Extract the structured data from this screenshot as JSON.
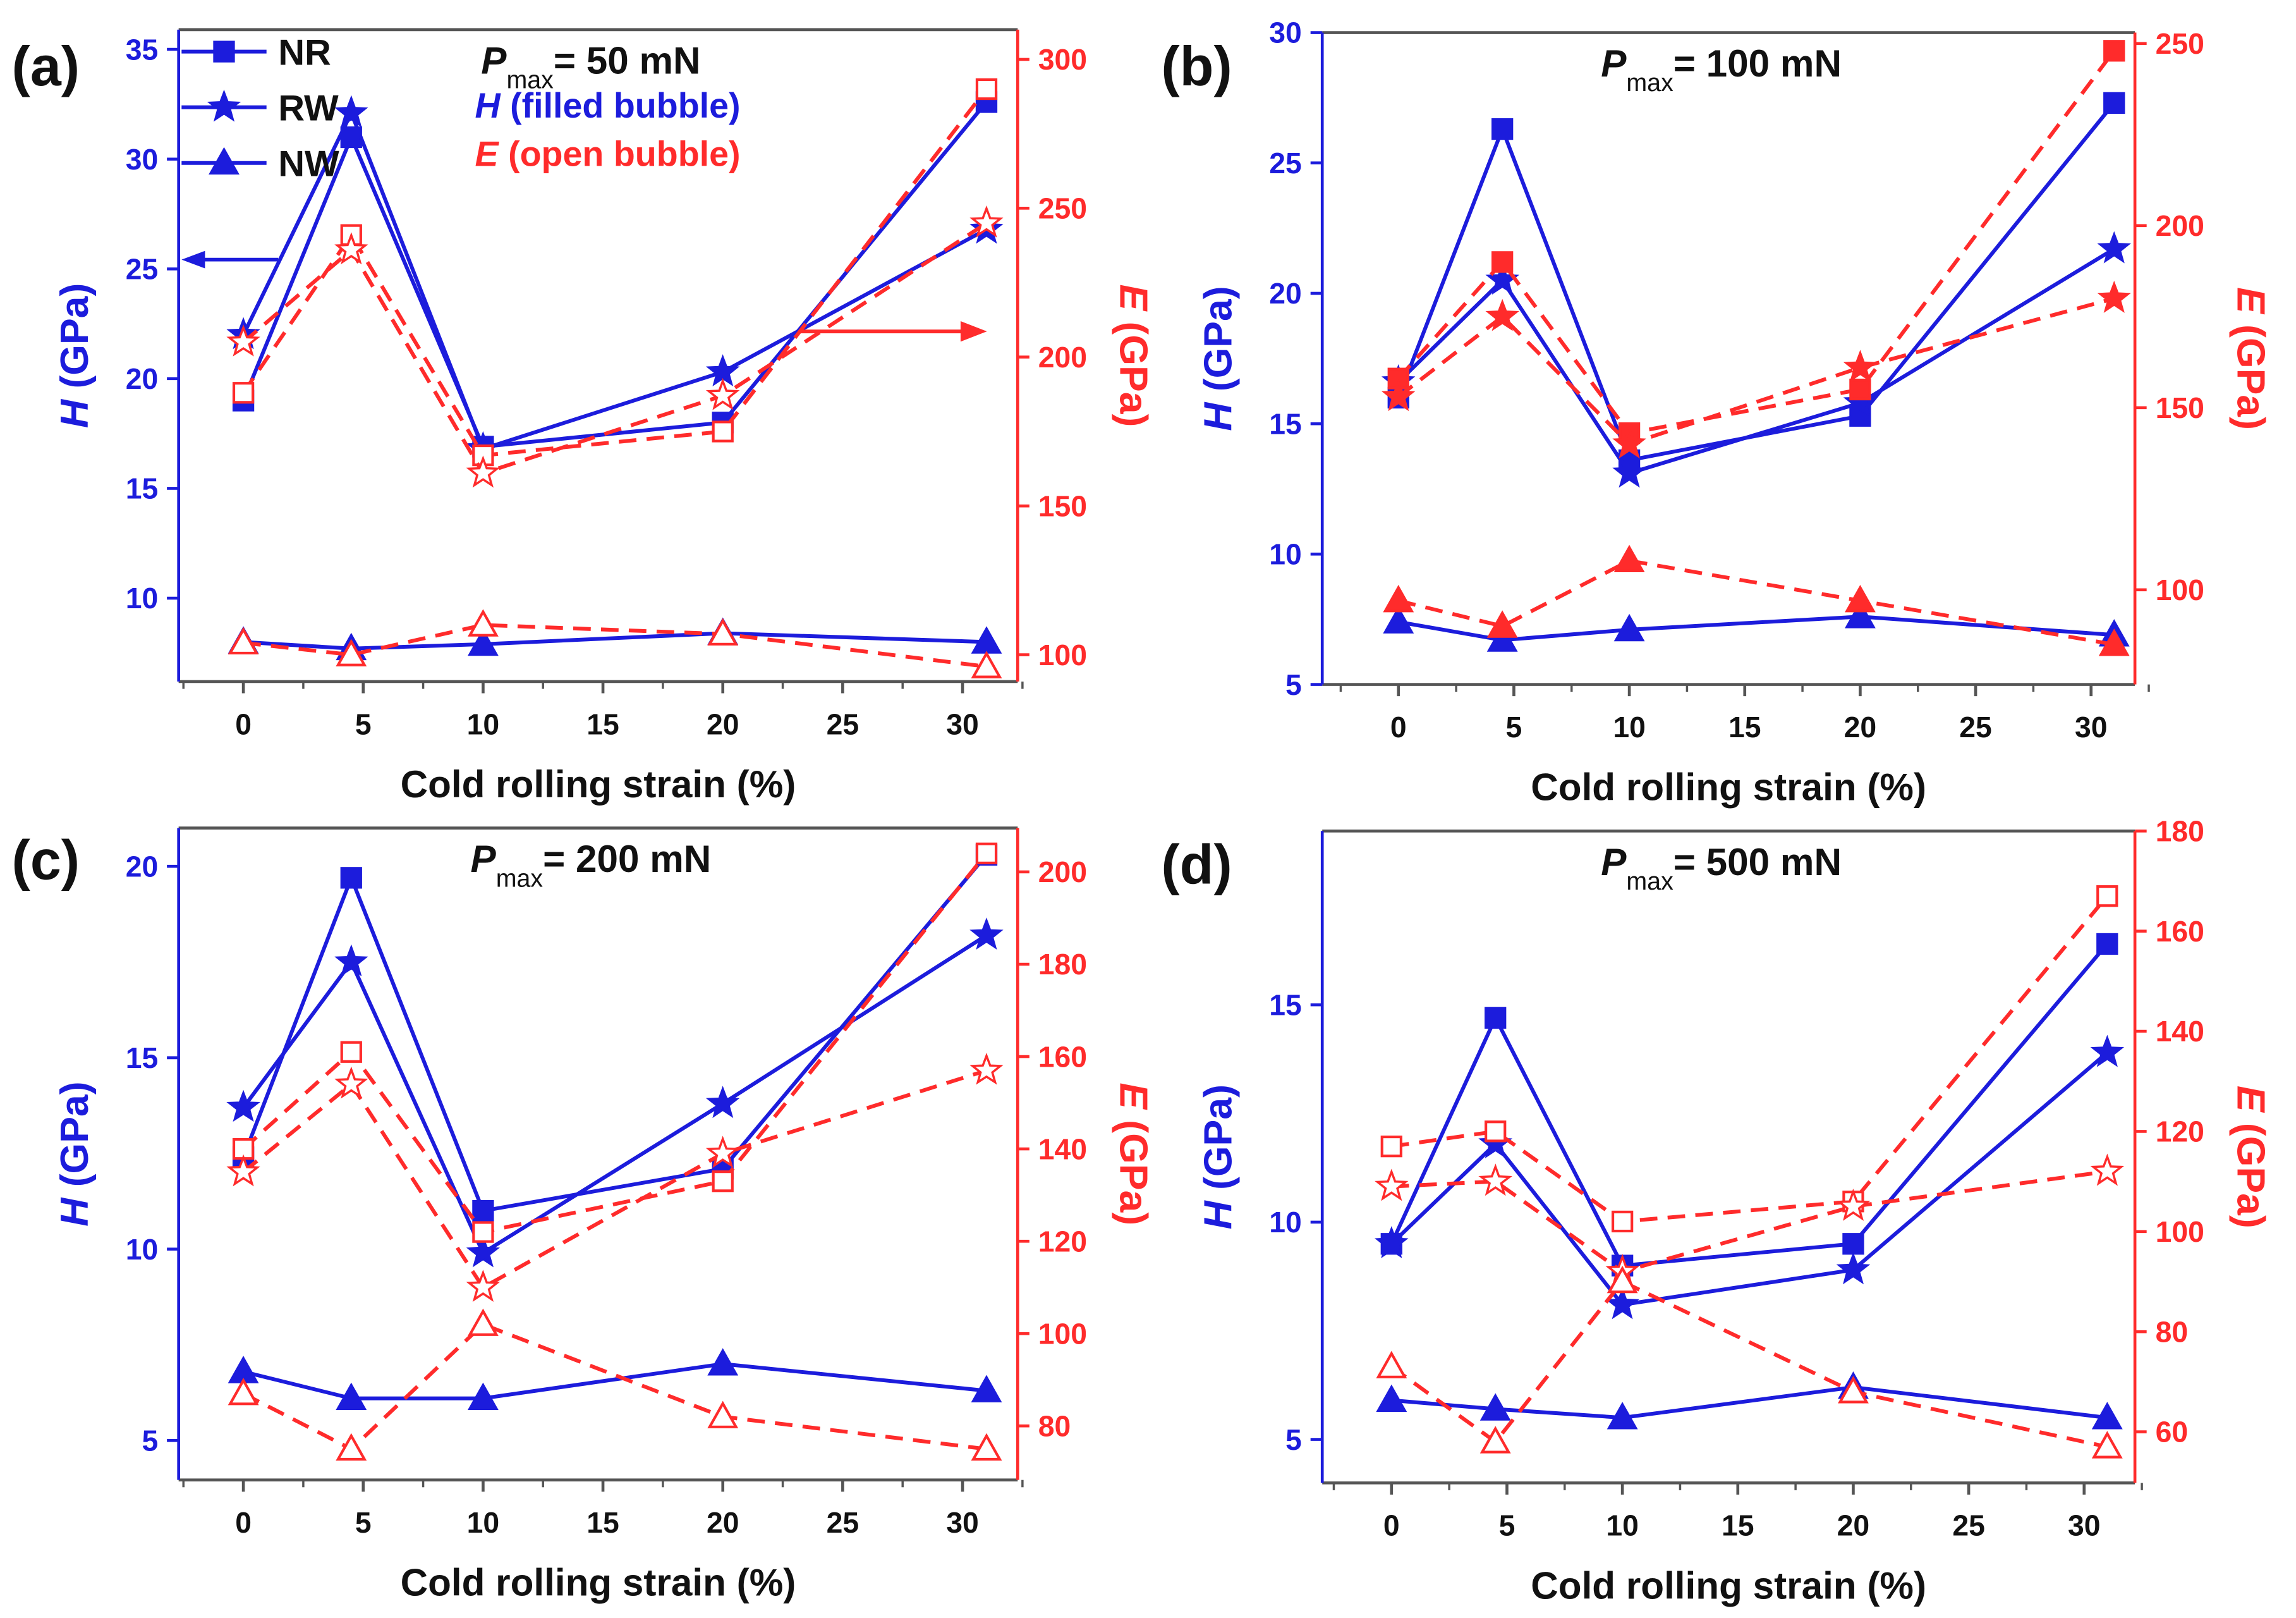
{
  "colors": {
    "H": "#1c1cdc",
    "E": "#ff2b2b",
    "axis": "#555555",
    "text": "#111111"
  },
  "legend": {
    "entries": [
      "NR",
      "RW",
      "NW"
    ],
    "markers": [
      "square",
      "star",
      "triangle"
    ],
    "note_H": [
      "H",
      " (filled bubble)"
    ],
    "note_E": [
      "E",
      " (open bubble)"
    ]
  },
  "chart_data": [
    {
      "type": "line",
      "panel": "(a)",
      "title": [
        "P",
        "max",
        "= 50 mN"
      ],
      "xlabel": "Cold rolling strain (%)",
      "ylabel_left": [
        "H",
        " (GPa)"
      ],
      "ylabel_right": [
        "E",
        " (GPa)"
      ],
      "x": [
        0,
        4.5,
        10,
        20,
        31
      ],
      "xlim": [
        -2.7,
        32.3
      ],
      "xticks": [
        0,
        5,
        10,
        15,
        20,
        25,
        30
      ],
      "ylim_left": [
        6.2,
        35.9
      ],
      "yticks_left": [
        10,
        15,
        20,
        25,
        30,
        35
      ],
      "ylim_right": [
        91,
        310
      ],
      "yticks_right": [
        100,
        150,
        200,
        250,
        300
      ],
      "E_filled": false,
      "grid": false,
      "legend": "top-left",
      "series": [
        {
          "name": "NR",
          "axis": "H",
          "marker": "square",
          "values": [
            19.0,
            31.0,
            16.9,
            18.0,
            32.6
          ]
        },
        {
          "name": "RW",
          "axis": "H",
          "marker": "star",
          "values": [
            22.0,
            32.1,
            16.8,
            20.3,
            26.8
          ]
        },
        {
          "name": "NW",
          "axis": "H",
          "marker": "triangle",
          "values": [
            8.0,
            7.7,
            7.9,
            8.4,
            8.0
          ]
        },
        {
          "name": "NR",
          "axis": "E",
          "marker": "square",
          "values": [
            188,
            241,
            167,
            175,
            290
          ]
        },
        {
          "name": "RW",
          "axis": "E",
          "marker": "star",
          "values": [
            205,
            236,
            161,
            187,
            245
          ]
        },
        {
          "name": "NW",
          "axis": "E",
          "marker": "triangle",
          "values": [
            104,
            100,
            110,
            107,
            96
          ]
        }
      ]
    },
    {
      "type": "line",
      "panel": "(b)",
      "title": [
        "P",
        "max",
        "= 100 mN"
      ],
      "xlabel": "Cold rolling strain (%)",
      "ylabel_left": [
        "H",
        " (GPa)"
      ],
      "ylabel_right": [
        "E",
        " (GPa)"
      ],
      "x": [
        0,
        4.5,
        10,
        20,
        31
      ],
      "xlim": [
        -3.3,
        31.9
      ],
      "xticks": [
        0,
        5,
        10,
        15,
        20,
        25,
        30
      ],
      "ylim_left": [
        5,
        30
      ],
      "yticks_left": [
        5,
        10,
        15,
        20,
        25,
        30
      ],
      "ylim_right": [
        74,
        253
      ],
      "yticks_right": [
        100,
        150,
        200,
        250
      ],
      "E_filled": true,
      "grid": false,
      "series": [
        {
          "name": "NR",
          "axis": "H",
          "marker": "square",
          "values": [
            16.0,
            26.3,
            13.6,
            15.3,
            27.3
          ]
        },
        {
          "name": "RW",
          "axis": "H",
          "marker": "star",
          "values": [
            16.6,
            20.5,
            13.1,
            15.8,
            21.7
          ]
        },
        {
          "name": "NW",
          "axis": "H",
          "marker": "triangle",
          "values": [
            7.4,
            6.7,
            7.1,
            7.6,
            6.9
          ]
        },
        {
          "name": "NR",
          "axis": "E",
          "marker": "square",
          "values": [
            158,
            190,
            143,
            155,
            248
          ]
        },
        {
          "name": "RW",
          "axis": "E",
          "marker": "star",
          "values": [
            153,
            175,
            140,
            161,
            180
          ]
        },
        {
          "name": "NW",
          "axis": "E",
          "marker": "triangle",
          "values": [
            97,
            90,
            108,
            97,
            85
          ]
        }
      ]
    },
    {
      "type": "line",
      "panel": "(c)",
      "title": [
        "P",
        "max",
        "= 200 mN"
      ],
      "xlabel": "Cold rolling strain (%)",
      "ylabel_left": [
        "H",
        " (GPa)"
      ],
      "ylabel_right": [
        "E",
        " (GPa)"
      ],
      "x": [
        0,
        4.5,
        10,
        20,
        31
      ],
      "xlim": [
        -2.7,
        32.3
      ],
      "xticks": [
        0,
        5,
        10,
        15,
        20,
        25,
        30
      ],
      "ylim_left": [
        3.97,
        21
      ],
      "yticks_left": [
        5,
        10,
        15,
        20
      ],
      "ylim_right": [
        68.3,
        209.5
      ],
      "yticks_right": [
        80,
        100,
        120,
        140,
        160,
        180,
        200
      ],
      "E_filled": false,
      "grid": false,
      "series": [
        {
          "name": "NR",
          "axis": "H",
          "marker": "square",
          "values": [
            12.4,
            19.7,
            11.0,
            12.1,
            20.3
          ]
        },
        {
          "name": "RW",
          "axis": "H",
          "marker": "star",
          "values": [
            13.7,
            17.5,
            9.9,
            13.8,
            18.2
          ]
        },
        {
          "name": "NW",
          "axis": "H",
          "marker": "triangle",
          "values": [
            6.8,
            6.1,
            6.1,
            7.0,
            6.3
          ]
        },
        {
          "name": "NR",
          "axis": "E",
          "marker": "square",
          "values": [
            140,
            161,
            122,
            133,
            204
          ]
        },
        {
          "name": "RW",
          "axis": "E",
          "marker": "star",
          "values": [
            135,
            154,
            110,
            139,
            157
          ]
        },
        {
          "name": "NW",
          "axis": "E",
          "marker": "triangle",
          "values": [
            87,
            75,
            102,
            82,
            75
          ]
        }
      ]
    },
    {
      "type": "line",
      "panel": "(d)",
      "title": [
        "P",
        "max",
        "= 500 mN"
      ],
      "xlabel": "Cold rolling strain (%)",
      "ylabel_left": [
        "H",
        " (GPa)"
      ],
      "ylabel_right": [
        "E",
        " (GPa)"
      ],
      "x": [
        0,
        4.5,
        10,
        20,
        31
      ],
      "xlim": [
        -3,
        32.2
      ],
      "xticks": [
        0,
        5,
        10,
        15,
        20,
        25,
        30
      ],
      "ylim_left": [
        4,
        19
      ],
      "yticks_left": [
        5,
        10,
        15
      ],
      "ylim_right": [
        49.8,
        180
      ],
      "yticks_right": [
        60,
        80,
        100,
        120,
        140,
        160,
        180
      ],
      "E_filled": false,
      "grid": false,
      "series": [
        {
          "name": "NR",
          "axis": "H",
          "marker": "square",
          "values": [
            9.5,
            14.7,
            9.0,
            9.5,
            16.4
          ]
        },
        {
          "name": "RW",
          "axis": "H",
          "marker": "star",
          "values": [
            9.5,
            11.8,
            8.1,
            8.9,
            13.9
          ]
        },
        {
          "name": "NW",
          "axis": "H",
          "marker": "triangle",
          "values": [
            5.9,
            5.7,
            5.5,
            6.2,
            5.5
          ]
        },
        {
          "name": "NR",
          "axis": "E",
          "marker": "square",
          "values": [
            117,
            120,
            102,
            106,
            167
          ]
        },
        {
          "name": "RW",
          "axis": "E",
          "marker": "star",
          "values": [
            109,
            110,
            92,
            105,
            112
          ]
        },
        {
          "name": "NW",
          "axis": "E",
          "marker": "triangle",
          "values": [
            73,
            58,
            90,
            68,
            57
          ]
        }
      ]
    }
  ]
}
